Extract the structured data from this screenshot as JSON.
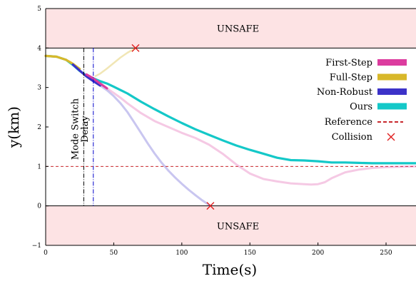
{
  "chart_data": {
    "type": "line",
    "xlabel": "Time(s)",
    "ylabel": "y(km)",
    "xlim": [
      0,
      272
    ],
    "ylim": [
      -1,
      5
    ],
    "x_ticks": [
      0,
      50,
      100,
      150,
      200,
      250
    ],
    "y_ticks": [
      -1,
      0,
      1,
      2,
      3,
      4,
      5
    ],
    "unsafe_zones": [
      {
        "label": "UNSAFE",
        "y_from": 4,
        "y_to": 5
      },
      {
        "label": "UNSAFE",
        "y_from": -1,
        "y_to": 0
      }
    ],
    "annotations": [
      {
        "label": "Mode Switch",
        "x": 28,
        "style": "dashdot",
        "color": "#000000"
      },
      {
        "label": "Delay",
        "x": 35,
        "style": "dashdot",
        "color": "#0000cc"
      }
    ],
    "reference": {
      "name": "Reference",
      "y": 1,
      "color": "#c8282d"
    },
    "collision_label": "Collision",
    "collisions": [
      {
        "x": 66,
        "y": 4.0
      },
      {
        "x": 121,
        "y": 0.0
      }
    ],
    "series": [
      {
        "name": "First-Step",
        "color": "#dc3c9f",
        "x": [
          0,
          8,
          15,
          20,
          25,
          30,
          35,
          40,
          45,
          50,
          55,
          60,
          70,
          80,
          90,
          100,
          110,
          120,
          130,
          140,
          150,
          160,
          170,
          180,
          190,
          195,
          200,
          205,
          210,
          220,
          230,
          240,
          250,
          260,
          272
        ],
        "y": [
          3.8,
          3.78,
          3.7,
          3.58,
          3.45,
          3.33,
          3.23,
          3.1,
          2.98,
          2.86,
          2.74,
          2.6,
          2.35,
          2.15,
          2.0,
          1.85,
          1.72,
          1.55,
          1.32,
          1.05,
          0.82,
          0.68,
          0.62,
          0.57,
          0.55,
          0.54,
          0.55,
          0.6,
          0.7,
          0.85,
          0.92,
          0.96,
          0.98,
          0.99,
          1.0
        ]
      },
      {
        "name": "Full-Step",
        "color": "#d8b82a",
        "x": [
          0,
          8,
          15,
          20,
          25,
          28,
          32,
          36,
          40,
          45,
          50,
          55,
          60,
          66
        ],
        "y": [
          3.8,
          3.78,
          3.7,
          3.6,
          3.47,
          3.38,
          3.3,
          3.28,
          3.35,
          3.48,
          3.62,
          3.76,
          3.88,
          4.0
        ]
      },
      {
        "name": "Non-Robust",
        "color": "#3c32c8",
        "x": [
          0,
          8,
          15,
          20,
          25,
          30,
          35,
          40,
          45,
          50,
          55,
          60,
          65,
          70,
          75,
          80,
          85,
          90,
          95,
          100,
          105,
          110,
          115,
          121
        ],
        "y": [
          3.8,
          3.78,
          3.7,
          3.58,
          3.43,
          3.28,
          3.16,
          3.05,
          2.93,
          2.78,
          2.6,
          2.38,
          2.12,
          1.85,
          1.58,
          1.33,
          1.1,
          0.9,
          0.72,
          0.56,
          0.41,
          0.27,
          0.14,
          0.0
        ]
      },
      {
        "name": "Ours",
        "color": "#14c8c8",
        "x": [
          0,
          8,
          15,
          20,
          25,
          30,
          35,
          40,
          45,
          50,
          60,
          70,
          80,
          90,
          100,
          110,
          120,
          130,
          140,
          150,
          160,
          170,
          180,
          190,
          200,
          210,
          220,
          230,
          240,
          250,
          260,
          272
        ],
        "y": [
          3.8,
          3.78,
          3.7,
          3.57,
          3.42,
          3.3,
          3.23,
          3.16,
          3.1,
          3.02,
          2.85,
          2.64,
          2.45,
          2.27,
          2.1,
          1.94,
          1.8,
          1.66,
          1.53,
          1.42,
          1.32,
          1.22,
          1.16,
          1.15,
          1.13,
          1.1,
          1.1,
          1.09,
          1.08,
          1.08,
          1.08,
          1.08
        ]
      }
    ],
    "legend": {
      "placement": "right"
    }
  }
}
